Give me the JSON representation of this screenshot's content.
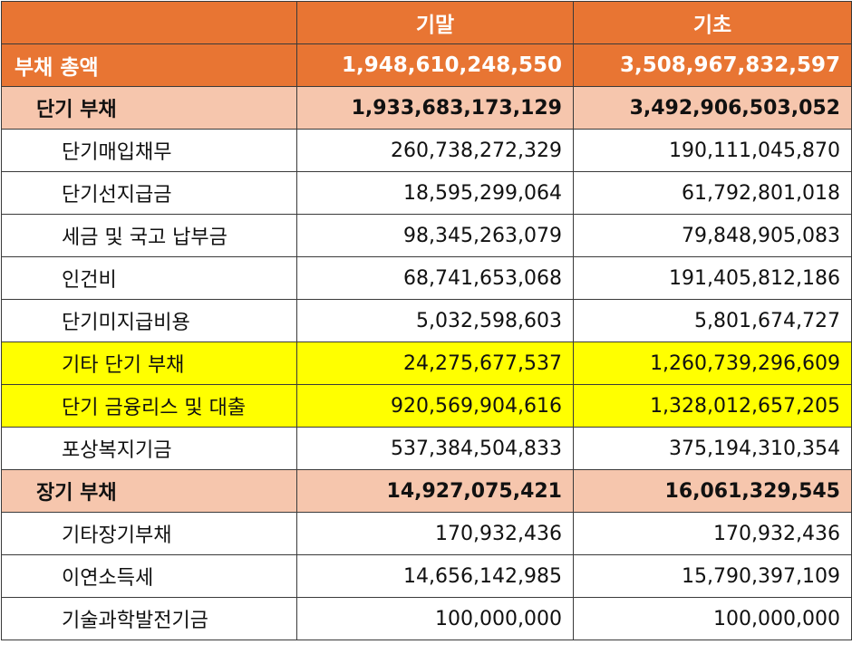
{
  "header": {
    "label": "",
    "end_period": "기말",
    "begin_period": "기초"
  },
  "total": {
    "label": "부채 총액",
    "end": "1,948,610,248,550",
    "begin": "3,508,967,832,597"
  },
  "short_term": {
    "label": "단기 부채",
    "end": "1,933,683,173,129",
    "begin": "3,492,906,503,052",
    "items": [
      {
        "label": "단기매입채무",
        "end": "260,738,272,329",
        "begin": "190,111,045,870"
      },
      {
        "label": "단기선지급금",
        "end": "18,595,299,064",
        "begin": "61,792,801,018"
      },
      {
        "label": "세금 및 국고 납부금",
        "end": "98,345,263,079",
        "begin": "79,848,905,083"
      },
      {
        "label": "인건비",
        "end": "68,741,653,068",
        "begin": "191,405,812,186"
      },
      {
        "label": "단기미지급비용",
        "end": "5,032,598,603",
        "begin": "5,801,674,727"
      },
      {
        "label": "기타 단기 부채",
        "end": "24,275,677,537",
        "begin": "1,260,739,296,609"
      },
      {
        "label": "단기 금융리스 및 대출",
        "end": "920,569,904,616",
        "begin": "1,328,012,657,205"
      },
      {
        "label": "포상복지기금",
        "end": "537,384,504,833",
        "begin": "375,194,310,354"
      }
    ]
  },
  "long_term": {
    "label": "장기 부채",
    "end": "14,927,075,421",
    "begin": "16,061,329,545",
    "items": [
      {
        "label": "기타장기부채",
        "end": "170,932,436",
        "begin": "170,932,436"
      },
      {
        "label": "이연소득세",
        "end": "14,656,142,985",
        "begin": "15,790,397,109"
      },
      {
        "label": "기술과학발전기금",
        "end": "100,000,000",
        "begin": "100,000,000"
      }
    ]
  },
  "colors": {
    "header_bg": "#e87533",
    "subtotal_bg": "#f6c6ad",
    "highlight_bg": "#ffff00",
    "border": "#3a3a3a"
  }
}
